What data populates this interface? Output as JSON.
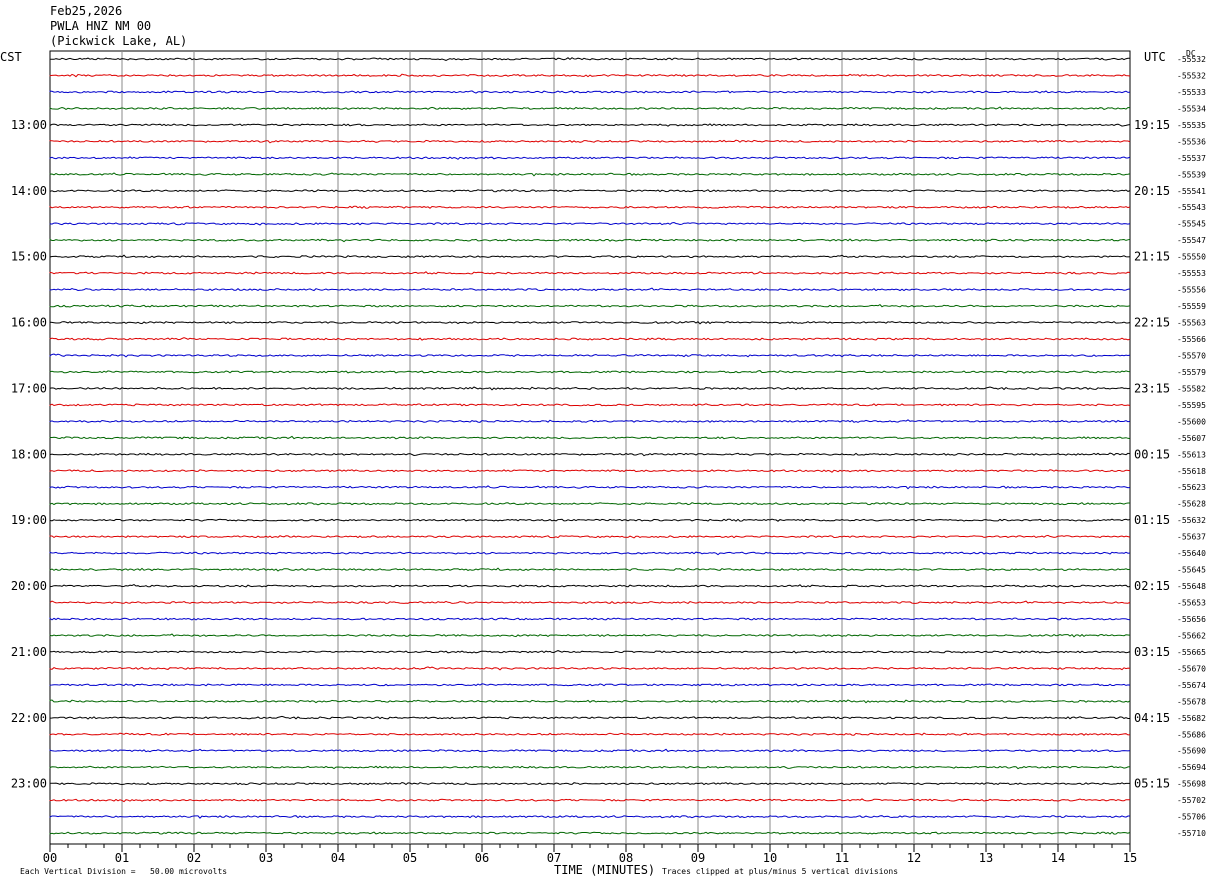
{
  "header": {
    "date": "Feb25,2026",
    "station": "PWLA HNZ NM 00",
    "location": "(Pickwick Lake, AL)"
  },
  "left_tz": "CST",
  "right_tz": "UTC",
  "dc_label": "DC",
  "chart_data": {
    "type": "line",
    "title": "Feb25,2026 PWLA HNZ NM 00 (Pickwick Lake, AL)",
    "xlabel": "TIME (MINUTES)",
    "ylabel": "",
    "xlim": [
      0,
      15
    ],
    "x_ticks": [
      "00",
      "01",
      "02",
      "03",
      "04",
      "05",
      "06",
      "07",
      "08",
      "09",
      "10",
      "11",
      "12",
      "13",
      "14",
      "15"
    ],
    "left_hour_labels": [
      "13:00",
      "14:00",
      "15:00",
      "16:00",
      "17:00",
      "18:00",
      "19:00",
      "20:00",
      "21:00",
      "22:00",
      "23:00"
    ],
    "right_hour_labels": [
      "19:15",
      "20:15",
      "21:15",
      "22:15",
      "23:15",
      "00:15",
      "01:15",
      "02:15",
      "03:15",
      "04:15",
      "05:15"
    ],
    "trace_colors": [
      "#000000",
      "#dd0000",
      "#0000cc",
      "#006600"
    ],
    "trace_count": 48,
    "dc_offsets": [
      "-55532",
      "-55532",
      "-55533",
      "-55534",
      "-55535",
      "-55536",
      "-55537",
      "-55539",
      "-55541",
      "-55543",
      "-55545",
      "-55547",
      "-55550",
      "-55553",
      "-55556",
      "-55559",
      "-55563",
      "-55566",
      "-55570",
      "-55579",
      "-55582",
      "-55595",
      "-55600",
      "-55607",
      "-55613",
      "-55618",
      "-55623",
      "-55628",
      "-55632",
      "-55637",
      "-55640",
      "-55645",
      "-55648",
      "-55653",
      "-55656",
      "-55662",
      "-55665",
      "-55670",
      "-55674",
      "-55678",
      "-55682",
      "-55686",
      "-55690",
      "-55694",
      "-55698",
      "-55702",
      "-55706",
      "-55710"
    ],
    "grid": true
  },
  "footer": {
    "scale": "Each Vertical Division =   50.00 microvolts",
    "clip": "Traces clipped at plus/minus 5 vertical divisions"
  }
}
